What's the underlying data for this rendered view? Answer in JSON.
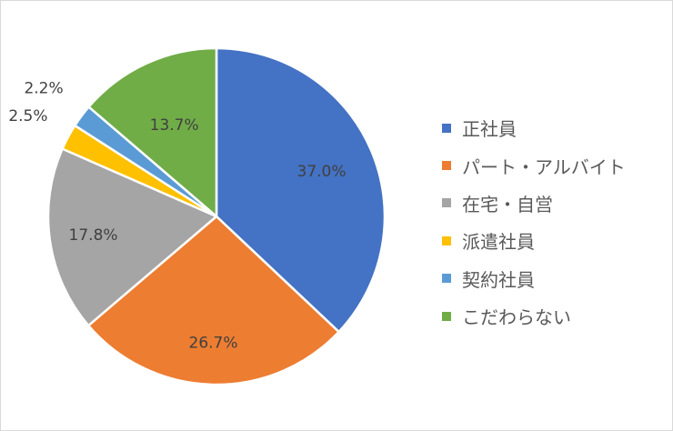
{
  "chart_data": {
    "type": "pie",
    "categories": [
      "正社員",
      "パート・アルバイト",
      "在宅・自営",
      "派遣社員",
      "契約社員",
      "こだわらない"
    ],
    "values": [
      37.0,
      26.7,
      17.8,
      2.5,
      2.2,
      13.7
    ],
    "data_labels": [
      "37.0%",
      "26.7%",
      "17.8%",
      "2.5%",
      "2.2%",
      "13.7%"
    ],
    "colors": [
      "#4472C4",
      "#ED7D31",
      "#A5A5A5",
      "#FFC000",
      "#5B9BD5",
      "#70AD47"
    ],
    "start_angle": "12 o'clock",
    "direction": "clockwise",
    "legend_position": "right"
  }
}
